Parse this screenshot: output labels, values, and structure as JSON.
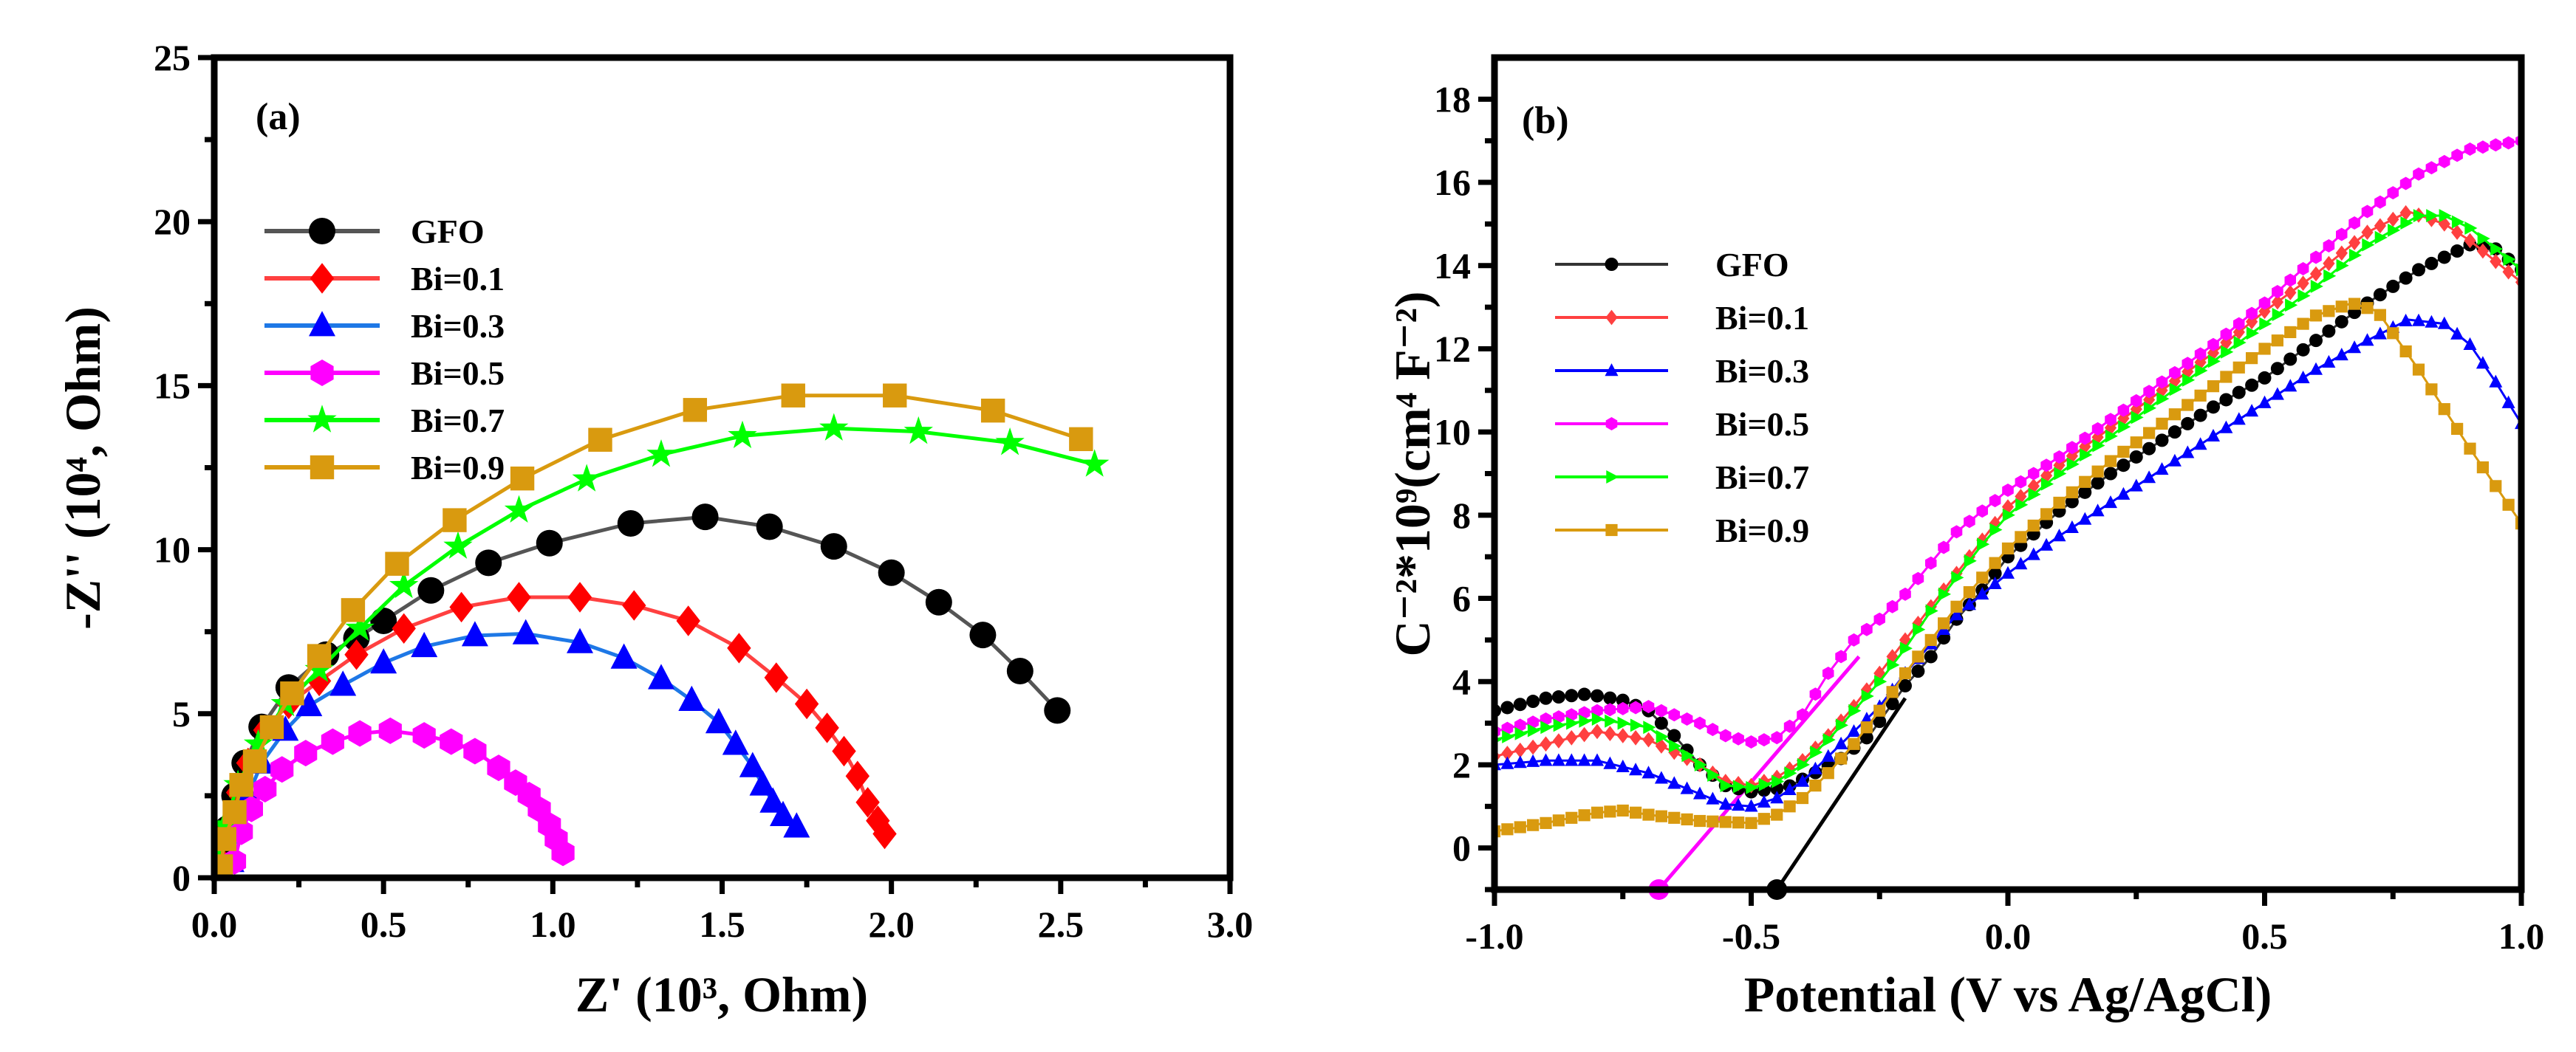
{
  "chart_data": [
    {
      "type": "line",
      "panel_label": "(a)",
      "xlabel": "Z' (10³, Ohm)",
      "ylabel": "-Z'' (10⁴, Ohm)",
      "xlim": [
        0,
        3
      ],
      "ylim": [
        0,
        25
      ],
      "xticks": [
        "0.0",
        "0.5",
        "1.0",
        "1.5",
        "2.0",
        "2.5",
        "3.0"
      ],
      "yticks": [
        "0",
        "5",
        "10",
        "15",
        "20",
        "25"
      ],
      "grid": false,
      "legend_position": "top-left",
      "series": [
        {
          "name": "GFO",
          "color": "#000000",
          "line_color": "#555555",
          "marker": "circle",
          "x": [
            0.02,
            0.04,
            0.06,
            0.09,
            0.14,
            0.22,
            0.33,
            0.42,
            0.5,
            0.64,
            0.81,
            0.99,
            1.23,
            1.45,
            1.64,
            1.83,
            2.0,
            2.14,
            2.27,
            2.38,
            2.49
          ],
          "y": [
            0.5,
            1.5,
            2.5,
            3.5,
            4.6,
            5.8,
            6.8,
            7.3,
            7.83,
            8.76,
            9.6,
            10.2,
            10.8,
            11.0,
            10.7,
            10.1,
            9.3,
            8.4,
            7.4,
            6.3,
            5.1
          ]
        },
        {
          "name": "Bi=0.1",
          "color": "#ff0000",
          "line_color": "#ff4040",
          "marker": "diamond",
          "x": [
            0.02,
            0.04,
            0.07,
            0.1,
            0.15,
            0.22,
            0.31,
            0.42,
            0.56,
            0.73,
            0.9,
            1.08,
            1.24,
            1.4,
            1.55,
            1.66,
            1.75,
            1.81,
            1.86,
            1.9,
            1.93,
            1.96,
            1.98
          ],
          "y": [
            0.5,
            1.5,
            2.6,
            3.5,
            4.5,
            5.3,
            6.0,
            6.8,
            7.6,
            8.25,
            8.55,
            8.55,
            8.3,
            7.83,
            7.0,
            6.1,
            5.3,
            4.57,
            3.86,
            3.1,
            2.3,
            1.74,
            1.34
          ]
        },
        {
          "name": "Bi=0.3",
          "color": "#0000ff",
          "line_color": "#1e78e6",
          "marker": "triangle-up",
          "x": [
            0.05,
            0.07,
            0.1,
            0.14,
            0.21,
            0.28,
            0.38,
            0.5,
            0.62,
            0.77,
            0.92,
            1.08,
            1.21,
            1.32,
            1.41,
            1.49,
            1.54,
            1.59,
            1.62,
            1.65,
            1.68,
            1.72
          ],
          "y": [
            0.5,
            1.5,
            2.5,
            3.5,
            4.5,
            5.25,
            5.87,
            6.55,
            7.05,
            7.38,
            7.44,
            7.17,
            6.7,
            6.07,
            5.41,
            4.73,
            4.07,
            3.39,
            2.83,
            2.31,
            1.9,
            1.55
          ]
        },
        {
          "name": "Bi=0.5",
          "color": "#ff00ff",
          "line_color": "#ff00ff",
          "marker": "hexagon",
          "x": [
            0.06,
            0.08,
            0.11,
            0.15,
            0.2,
            0.27,
            0.35,
            0.43,
            0.52,
            0.62,
            0.7,
            0.77,
            0.84,
            0.89,
            0.93,
            0.96,
            0.99,
            1.01,
            1.03
          ],
          "y": [
            0.5,
            1.4,
            2.1,
            2.7,
            3.3,
            3.8,
            4.15,
            4.4,
            4.48,
            4.34,
            4.15,
            3.86,
            3.35,
            2.9,
            2.52,
            2.09,
            1.6,
            1.18,
            0.76
          ]
        },
        {
          "name": "Bi=0.7",
          "color": "#00ff00",
          "line_color": "#00ff00",
          "marker": "star",
          "x": [
            0.01,
            0.03,
            0.07,
            0.13,
            0.21,
            0.31,
            0.43,
            0.56,
            0.72,
            0.9,
            1.1,
            1.32,
            1.56,
            1.83,
            2.08,
            2.35,
            2.6
          ],
          "y": [
            0.56,
            1.6,
            2.83,
            4.07,
            5.3,
            6.34,
            7.6,
            8.9,
            10.1,
            11.2,
            12.15,
            12.9,
            13.47,
            13.7,
            13.6,
            13.26,
            12.6
          ]
        },
        {
          "name": "Bi=0.9",
          "color": "#d99a0f",
          "line_color": "#d99a0f",
          "marker": "square",
          "x": [
            0.02,
            0.03,
            0.06,
            0.08,
            0.12,
            0.17,
            0.23,
            0.31,
            0.41,
            0.54,
            0.71,
            0.91,
            1.14,
            1.42,
            1.71,
            2.01,
            2.3,
            2.56
          ],
          "y": [
            0.35,
            1.18,
            2.0,
            2.83,
            3.55,
            4.59,
            5.62,
            6.76,
            8.16,
            9.57,
            10.9,
            12.17,
            13.35,
            14.26,
            14.7,
            14.7,
            14.24,
            13.37
          ]
        }
      ]
    },
    {
      "type": "line",
      "panel_label": "(b)",
      "xlabel": "Potential (V vs Ag/AgCl)",
      "ylabel": "C⁻²*10⁹(cm⁴ F⁻²)",
      "xlim": [
        -1,
        1
      ],
      "ylim": [
        -1,
        19
      ],
      "xticks": [
        "-1.0",
        "-0.5",
        "0.0",
        "0.5",
        "1.0"
      ],
      "yticks": [
        "0",
        "2",
        "4",
        "6",
        "8",
        "10",
        "12",
        "14",
        "16",
        "18"
      ],
      "grid": false,
      "legend_position": "upper-left",
      "series": [
        {
          "name": "GFO",
          "color": "#000000",
          "line_color": "#333333",
          "marker": "circle",
          "x": [
            -1,
            -0.9,
            -0.82,
            -0.75,
            -0.7,
            -0.65,
            -0.6,
            -0.55,
            -0.5,
            -0.43,
            -0.33,
            -0.27,
            -0.2,
            -0.15,
            -0.1,
            -0.05,
            0,
            0.1,
            0.2,
            0.3,
            0.4,
            0.5,
            0.6,
            0.7,
            0.8,
            0.9,
            0.95,
            1.0
          ],
          "y": [
            3.3,
            3.6,
            3.7,
            3.55,
            3.3,
            2.7,
            2.0,
            1.5,
            1.35,
            1.46,
            2.1,
            2.7,
            3.9,
            4.6,
            5.5,
            6.2,
            7.0,
            8.1,
            9.0,
            9.8,
            10.6,
            11.3,
            12.2,
            13.1,
            13.9,
            14.5,
            14.4,
            13.9
          ]
        },
        {
          "name": "Bi=0.1",
          "color": "#ff4040",
          "line_color": "#ff4040",
          "marker": "diamond",
          "x": [
            -1,
            -0.9,
            -0.8,
            -0.7,
            -0.6,
            -0.55,
            -0.5,
            -0.45,
            -0.4,
            -0.35,
            -0.3,
            -0.25,
            -0.2,
            -0.15,
            -0.1,
            -0.05,
            0,
            0.1,
            0.2,
            0.3,
            0.4,
            0.5,
            0.6,
            0.7,
            0.78,
            0.85,
            0.9,
            1.0
          ],
          "y": [
            2.2,
            2.5,
            2.8,
            2.6,
            2.0,
            1.6,
            1.5,
            1.7,
            2.1,
            2.7,
            3.4,
            4.2,
            5.0,
            5.8,
            6.6,
            7.4,
            8.2,
            9.2,
            10.1,
            11.0,
            11.9,
            12.9,
            13.8,
            14.8,
            15.3,
            15.0,
            14.6,
            13.6
          ]
        },
        {
          "name": "Bi=0.3",
          "color": "#0000ff",
          "line_color": "#0000ff",
          "marker": "triangle-up",
          "x": [
            -1,
            -0.9,
            -0.8,
            -0.7,
            -0.6,
            -0.55,
            -0.5,
            -0.45,
            -0.4,
            -0.35,
            -0.3,
            -0.25,
            -0.2,
            -0.15,
            -0.1,
            -0.05,
            0,
            0.1,
            0.2,
            0.3,
            0.4,
            0.5,
            0.6,
            0.7,
            0.78,
            0.85,
            0.9,
            0.95,
            1.0
          ],
          "y": [
            2.0,
            2.1,
            2.1,
            1.8,
            1.3,
            1.05,
            1.0,
            1.2,
            1.6,
            2.2,
            2.8,
            3.4,
            4.2,
            4.9,
            5.6,
            6.1,
            6.6,
            7.5,
            8.3,
            9.1,
            9.9,
            10.7,
            11.5,
            12.2,
            12.7,
            12.6,
            12.1,
            11.2,
            10.2
          ]
        },
        {
          "name": "Bi=0.5",
          "color": "#ff00ff",
          "line_color": "#ff00ff",
          "marker": "hexagon",
          "x": [
            -1,
            -0.9,
            -0.8,
            -0.7,
            -0.6,
            -0.55,
            -0.5,
            -0.45,
            -0.4,
            -0.35,
            -0.3,
            -0.25,
            -0.2,
            -0.1,
            0,
            0.1,
            0.2,
            0.3,
            0.4,
            0.5,
            0.6,
            0.7,
            0.8,
            0.9,
            1.0
          ],
          "y": [
            2.8,
            3.1,
            3.3,
            3.4,
            3.0,
            2.7,
            2.55,
            2.65,
            3.2,
            4.2,
            5.0,
            5.5,
            6.1,
            7.6,
            8.6,
            9.4,
            10.3,
            11.2,
            12.1,
            13.1,
            14.2,
            15.3,
            16.2,
            16.8,
            17.0
          ]
        },
        {
          "name": "Bi=0.7",
          "color": "#00ff00",
          "line_color": "#00ff00",
          "marker": "triangle-right",
          "x": [
            -1,
            -0.9,
            -0.8,
            -0.7,
            -0.6,
            -0.55,
            -0.5,
            -0.45,
            -0.4,
            -0.35,
            -0.3,
            -0.25,
            -0.2,
            -0.15,
            -0.1,
            -0.05,
            0,
            0.1,
            0.2,
            0.3,
            0.4,
            0.5,
            0.6,
            0.7,
            0.8,
            0.85,
            0.9,
            1.0
          ],
          "y": [
            2.6,
            2.9,
            3.1,
            2.9,
            2.0,
            1.5,
            1.45,
            1.6,
            2.0,
            2.6,
            3.3,
            4.0,
            4.8,
            5.7,
            6.5,
            7.3,
            8.0,
            9.0,
            9.9,
            10.8,
            11.7,
            12.6,
            13.5,
            14.5,
            15.2,
            15.2,
            14.9,
            13.9
          ]
        },
        {
          "name": "Bi=0.9",
          "color": "#d99a0f",
          "line_color": "#d99a0f",
          "marker": "square",
          "x": [
            -1,
            -0.9,
            -0.8,
            -0.75,
            -0.7,
            -0.6,
            -0.5,
            -0.45,
            -0.4,
            -0.35,
            -0.3,
            -0.25,
            -0.2,
            -0.15,
            -0.1,
            -0.05,
            0,
            0.1,
            0.2,
            0.3,
            0.4,
            0.5,
            0.6,
            0.67,
            0.72,
            0.8,
            0.9,
            1.0
          ],
          "y": [
            0.4,
            0.6,
            0.85,
            0.9,
            0.8,
            0.65,
            0.6,
            0.8,
            1.2,
            1.8,
            2.5,
            3.3,
            4.2,
            5.0,
            5.8,
            6.5,
            7.2,
            8.3,
            9.3,
            10.2,
            11.1,
            12.0,
            12.8,
            13.1,
            12.9,
            11.5,
            9.6,
            7.8
          ]
        }
      ],
      "fit_lines": [
        {
          "series": "GFO",
          "color": "#000000",
          "x": [
            -0.45,
            -0.2
          ],
          "y": [
            -1,
            3.6
          ]
        },
        {
          "series": "Bi=0.5",
          "color": "#ff00ff",
          "x": [
            -0.68,
            -0.29
          ],
          "y": [
            -1,
            4.6
          ]
        }
      ]
    }
  ]
}
